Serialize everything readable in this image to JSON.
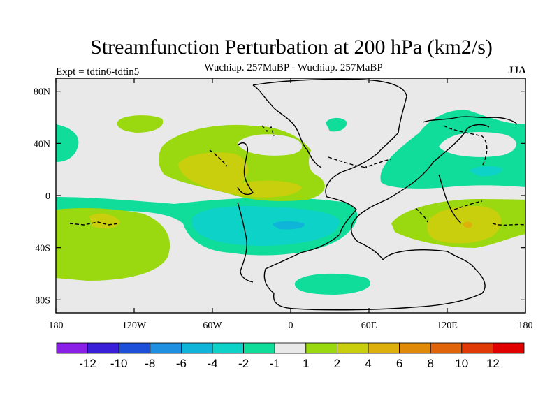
{
  "title": "Streamfunction Perturbation at 200 hPa (km2/s)",
  "subtitle": "Wuchiap. 257MaBP - Wuchiap. 257MaBP",
  "expt_label": "Expt = tdtin6-tdtin5",
  "season_label": "JJA",
  "axes": {
    "x_ticks": [
      {
        "value": -180,
        "label": "180"
      },
      {
        "value": -120,
        "label": "120W"
      },
      {
        "value": -60,
        "label": "60W"
      },
      {
        "value": 0,
        "label": "0"
      },
      {
        "value": 60,
        "label": "60E"
      },
      {
        "value": 120,
        "label": "120E"
      },
      {
        "value": 180,
        "label": "180"
      }
    ],
    "y_ticks": [
      {
        "value": 80,
        "label": "80N"
      },
      {
        "value": 40,
        "label": "40N"
      },
      {
        "value": 0,
        "label": "0"
      },
      {
        "value": -40,
        "label": "40S"
      },
      {
        "value": -80,
        "label": "80S"
      }
    ],
    "xlim": [
      -180,
      180
    ],
    "ylim": [
      -90,
      90
    ]
  },
  "colorbar": {
    "colors": [
      "#8a1fe6",
      "#3a1fd9",
      "#1e4fd8",
      "#1f8fe0",
      "#0fb4d8",
      "#0dd2c8",
      "#11dd9a",
      "#e9e9e9",
      "#9ad80f",
      "#c9cf0c",
      "#ddb00b",
      "#e08a0a",
      "#e0640a",
      "#df3a08",
      "#e00000"
    ],
    "levels": [
      "-12",
      "-10",
      "-8",
      "-6",
      "-4",
      "-2",
      "-1",
      "1",
      "2",
      "4",
      "6",
      "8",
      "10",
      "12"
    ]
  },
  "colors": {
    "background": "#e9e9e9",
    "neg1": "#11dd9a",
    "neg2": "#0dd2c8",
    "neg3": "#0fb4d8",
    "pos1": "#9ad80f",
    "pos2": "#c9cf0c",
    "pos3": "#ddb00b"
  }
}
